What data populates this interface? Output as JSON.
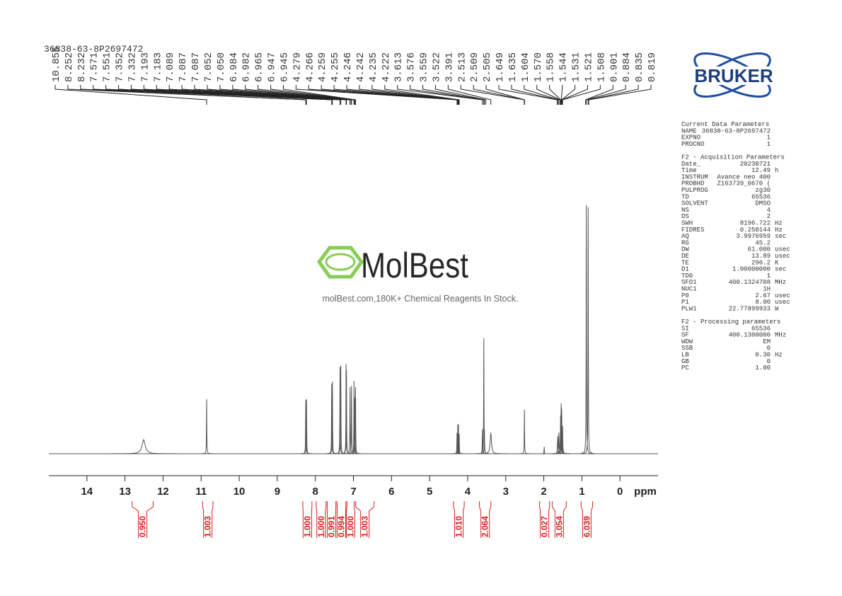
{
  "chart_data": {
    "type": "nmr",
    "sample_name": "36838-63-8P2697472",
    "x_label": "ppm",
    "xlim": [
      15,
      -1
    ],
    "xticks": [
      14,
      13,
      12,
      11,
      10,
      9,
      8,
      7,
      6,
      5,
      4,
      3,
      2,
      1,
      0
    ],
    "ylim": [
      0,
      360
    ],
    "line_color": "#555555",
    "integral_color": "#d62020",
    "peak_labels": [
      {
        "value": 10.855,
        "label": "10.855"
      },
      {
        "value": 8.252,
        "label": "8.252"
      },
      {
        "value": 8.232,
        "label": "8.232"
      },
      {
        "value": 7.571,
        "label": "7.571"
      },
      {
        "value": 7.551,
        "label": "7.551"
      },
      {
        "value": 7.352,
        "label": "7.352"
      },
      {
        "value": 7.332,
        "label": "7.332"
      },
      {
        "value": 7.193,
        "label": "7.193"
      },
      {
        "value": 7.183,
        "label": "7.183"
      },
      {
        "value": 7.089,
        "label": "7.089"
      },
      {
        "value": 7.087,
        "label": "7.087"
      },
      {
        "value": 7.087,
        "label": "7.087"
      },
      {
        "value": 7.052,
        "label": "7.052"
      },
      {
        "value": 7.05,
        "label": "7.050"
      },
      {
        "value": 6.984,
        "label": "6.984"
      },
      {
        "value": 6.982,
        "label": "6.982"
      },
      {
        "value": 6.965,
        "label": "6.965"
      },
      {
        "value": 6.947,
        "label": "6.947"
      },
      {
        "value": 6.945,
        "label": "6.945"
      },
      {
        "value": 4.279,
        "label": "4.279"
      },
      {
        "value": 4.266,
        "label": "4.266"
      },
      {
        "value": 4.259,
        "label": "4.259"
      },
      {
        "value": 4.255,
        "label": "4.255"
      },
      {
        "value": 4.246,
        "label": "4.246"
      },
      {
        "value": 4.242,
        "label": "4.242"
      },
      {
        "value": 4.235,
        "label": "4.235"
      },
      {
        "value": 4.222,
        "label": "4.222"
      },
      {
        "value": 3.613,
        "label": "3.613"
      },
      {
        "value": 3.576,
        "label": "3.576"
      },
      {
        "value": 3.559,
        "label": "3.559"
      },
      {
        "value": 3.522,
        "label": "3.522"
      },
      {
        "value": 3.391,
        "label": "3.391"
      },
      {
        "value": 2.513,
        "label": "2.513"
      },
      {
        "value": 2.509,
        "label": "2.509"
      },
      {
        "value": 2.505,
        "label": "2.505"
      },
      {
        "value": 1.649,
        "label": "1.649"
      },
      {
        "value": 1.635,
        "label": "1.635"
      },
      {
        "value": 1.604,
        "label": "1.604"
      },
      {
        "value": 1.57,
        "label": "1.570"
      },
      {
        "value": 1.558,
        "label": "1.558"
      },
      {
        "value": 1.544,
        "label": "1.544"
      },
      {
        "value": 1.531,
        "label": "1.531"
      },
      {
        "value": 1.521,
        "label": "1.521"
      },
      {
        "value": 1.508,
        "label": "1.508"
      },
      {
        "value": 0.901,
        "label": "0.901"
      },
      {
        "value": 0.884,
        "label": "0.884"
      },
      {
        "value": 0.835,
        "label": "0.835"
      },
      {
        "value": 0.819,
        "label": "0.819"
      }
    ],
    "peaks": [
      {
        "ppm": 12.51,
        "height": 20,
        "width": 0.1
      },
      {
        "ppm": 10.855,
        "height": 78,
        "width": 0.01
      },
      {
        "ppm": 8.252,
        "height": 77,
        "width": 0.01
      },
      {
        "ppm": 8.232,
        "height": 78,
        "width": 0.01
      },
      {
        "ppm": 7.571,
        "height": 100,
        "width": 0.01
      },
      {
        "ppm": 7.551,
        "height": 103,
        "width": 0.01
      },
      {
        "ppm": 7.352,
        "height": 124,
        "width": 0.01
      },
      {
        "ppm": 7.332,
        "height": 126,
        "width": 0.01
      },
      {
        "ppm": 7.193,
        "height": 128,
        "width": 0.01
      },
      {
        "ppm": 7.183,
        "height": 120,
        "width": 0.01
      },
      {
        "ppm": 7.089,
        "height": 95,
        "width": 0.01
      },
      {
        "ppm": 7.052,
        "height": 97,
        "width": 0.01
      },
      {
        "ppm": 6.984,
        "height": 104,
        "width": 0.01
      },
      {
        "ppm": 6.965,
        "height": 80,
        "width": 0.01
      },
      {
        "ppm": 6.945,
        "height": 95,
        "width": 0.01
      },
      {
        "ppm": 4.279,
        "height": 30,
        "width": 0.01
      },
      {
        "ppm": 4.259,
        "height": 42,
        "width": 0.01
      },
      {
        "ppm": 4.242,
        "height": 42,
        "width": 0.01
      },
      {
        "ppm": 4.222,
        "height": 28,
        "width": 0.01
      },
      {
        "ppm": 3.613,
        "height": 35,
        "width": 0.01
      },
      {
        "ppm": 3.576,
        "height": 165,
        "width": 0.01
      },
      {
        "ppm": 3.559,
        "height": 35,
        "width": 0.01
      },
      {
        "ppm": 3.391,
        "height": 30,
        "width": 0.04
      },
      {
        "ppm": 2.509,
        "height": 63,
        "width": 0.01
      },
      {
        "ppm": 1.99,
        "height": 10,
        "width": 0.01
      },
      {
        "ppm": 1.635,
        "height": 25,
        "width": 0.015
      },
      {
        "ppm": 1.604,
        "height": 30,
        "width": 0.015
      },
      {
        "ppm": 1.558,
        "height": 55,
        "width": 0.015
      },
      {
        "ppm": 1.544,
        "height": 72,
        "width": 0.015
      },
      {
        "ppm": 1.531,
        "height": 65,
        "width": 0.015
      },
      {
        "ppm": 1.508,
        "height": 40,
        "width": 0.015
      },
      {
        "ppm": 0.884,
        "height": 355,
        "width": 0.01
      },
      {
        "ppm": 0.835,
        "height": 352,
        "width": 0.01
      }
    ],
    "integrals": [
      {
        "value": 0.95,
        "label": "0.950",
        "range": [
          12.81,
          12.26
        ]
      },
      {
        "value": 1.003,
        "label": "1.003",
        "range": [
          10.96,
          10.69
        ]
      },
      {
        "value": 1.0,
        "label": "1.000",
        "range": [
          8.33,
          8.09
        ]
      },
      {
        "value": 1.0,
        "label": "1.000",
        "range": [
          7.98,
          7.72
        ]
      },
      {
        "value": 0.991,
        "label": "0.991",
        "range": [
          7.69,
          7.46
        ]
      },
      {
        "value": 0.994,
        "label": "0.994",
        "range": [
          7.43,
          7.2
        ]
      },
      {
        "value": 1.0,
        "label": "1.000",
        "range": [
          7.17,
          6.98
        ]
      },
      {
        "value": 1.003,
        "label": "1.003",
        "range": [
          6.94,
          6.46
        ]
      },
      {
        "value": 1.01,
        "label": "1.010",
        "range": [
          4.37,
          4.09
        ]
      },
      {
        "value": 2.064,
        "label": "2.064",
        "range": [
          3.69,
          3.39
        ]
      },
      {
        "value": 0.027,
        "label": "0.027",
        "range": [
          2.11,
          1.85
        ]
      },
      {
        "value": 3.054,
        "label": "3.054",
        "range": [
          1.78,
          1.41
        ]
      },
      {
        "value": 6.039,
        "label": "6.039",
        "range": [
          1.02,
          0.72
        ]
      }
    ]
  },
  "watermark": {
    "brand": "MolBest",
    "tagline": "molBest.com,180K+ Chemical Reagents In Stock."
  },
  "logo": "BRUKER",
  "parameters": [
    {
      "title": "Current Data Parameters",
      "rows": [
        [
          "NAME",
          "36838-63-8P2697472"
        ],
        [
          "EXPNO",
          "1"
        ],
        [
          "PROCNO",
          "1"
        ]
      ]
    },
    {
      "title": "F2 - Acquisition Parameters",
      "rows": [
        [
          "Date_",
          "20230721"
        ],
        [
          "Time",
          "12.49",
          "h"
        ],
        [
          "INSTRUM",
          "Avance neo 400"
        ],
        [
          "PROBHD",
          "Z163739_0670 ("
        ],
        [
          "PULPROG",
          "zg30"
        ],
        [
          "TD",
          "65536"
        ],
        [
          "SOLVENT",
          "DMSO"
        ],
        [
          "NS",
          "4"
        ],
        [
          "DS",
          "2"
        ],
        [
          "SWH",
          "8196.722",
          "Hz"
        ],
        [
          "FIDRES",
          "0.250144",
          "Hz"
        ],
        [
          "AQ",
          "3.9976959",
          "sec"
        ],
        [
          "RG",
          "45.2"
        ],
        [
          "DW",
          "61.000",
          "usec"
        ],
        [
          "DE",
          "13.89",
          "usec"
        ],
        [
          "TE",
          "296.2",
          "K"
        ],
        [
          "D1",
          "1.00000000",
          "sec"
        ],
        [
          "TD0",
          "1"
        ],
        [
          "SFO1",
          "400.1324708",
          "MHz"
        ],
        [
          "NUC1",
          "1H"
        ],
        [
          "P0",
          "2.67",
          "usec"
        ],
        [
          "P1",
          "8.00",
          "usec"
        ],
        [
          "PLW1",
          "22.77899933",
          "W"
        ]
      ]
    },
    {
      "title": "F2 - Processing parameters",
      "rows": [
        [
          "SI",
          "65536"
        ],
        [
          "SF",
          "400.1300000",
          "MHz"
        ],
        [
          "WDW",
          "EM"
        ],
        [
          "SSB",
          "0"
        ],
        [
          "LB",
          "0.30",
          "Hz"
        ],
        [
          "GB",
          "0"
        ],
        [
          "PC",
          "1.00"
        ]
      ]
    }
  ]
}
